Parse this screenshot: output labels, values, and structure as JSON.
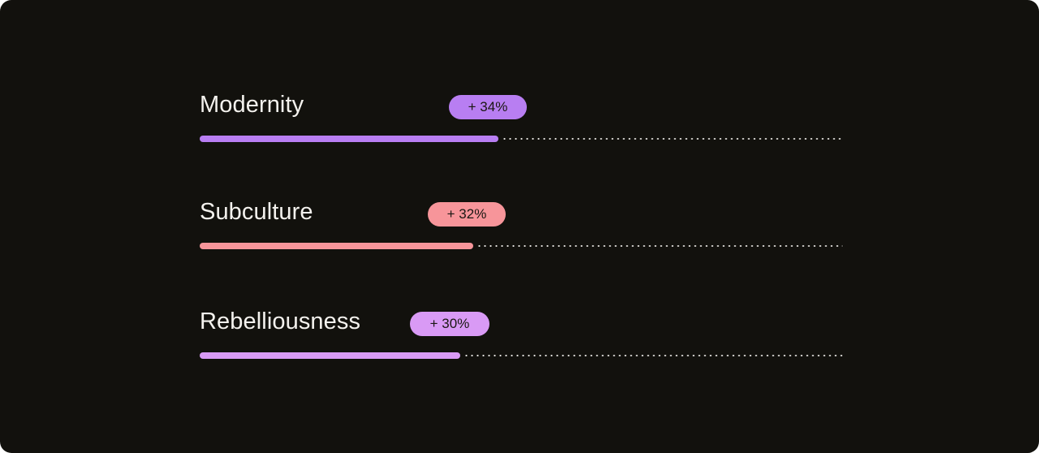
{
  "chart_data": {
    "type": "bar",
    "categories": [
      "Modernity",
      "Subculture",
      "Rebelliousness"
    ],
    "values": [
      34,
      32,
      30
    ],
    "value_labels": [
      "+ 34%",
      "+ 32%",
      "+ 30%"
    ],
    "colors": [
      "#b87ef2",
      "#f7959a",
      "#d99af5"
    ],
    "bar_fill_fractions": [
      0.465,
      0.425,
      0.405
    ],
    "orientation": "horizontal",
    "grid": false,
    "legend": "none"
  }
}
